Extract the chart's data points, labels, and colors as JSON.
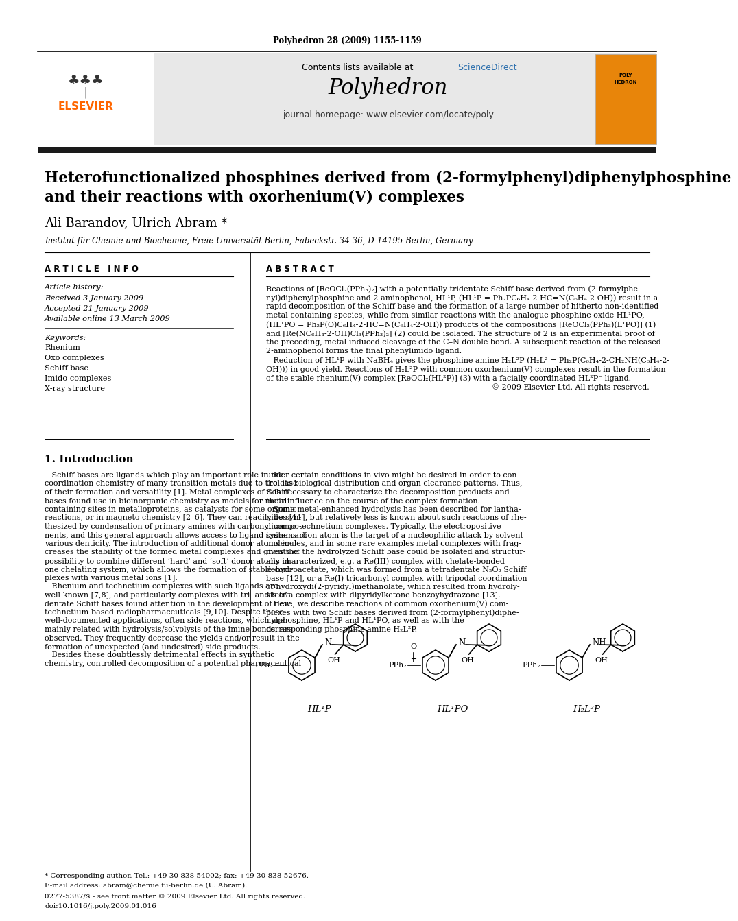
{
  "journal_header": "Polyhedron 28 (2009) 1155-1159",
  "journal_name": "Polyhedron",
  "contents_line": "Contents lists available at ScienceDirect",
  "journal_homepage": "journal homepage: www.elsevier.com/locate/poly",
  "title_line1": "Heterofunctionalized phosphines derived from (2-formylphenyl)diphenylphosphine",
  "title_line2": "and their reactions with oxorhenium(V) complexes",
  "authors": "Ali Barandov, Ulrich Abram *",
  "affiliation": "Institut für Chemie und Biochemie, Freie Universität Berlin, Fabeckstr. 34-36, D-14195 Berlin, Germany",
  "article_info_header": "A R T I C L E   I N F O",
  "abstract_header": "A B S T R A C T",
  "article_history_label": "Article history:",
  "received": "Received 3 January 2009",
  "accepted": "Accepted 21 January 2009",
  "available_online": "Available online 13 March 2009",
  "keywords_label": "Keywords:",
  "keywords": [
    "Rhenium",
    "Oxo complexes",
    "Schiff base",
    "Imido complexes",
    "X-ray structure"
  ],
  "footnote_corresponding": "* Corresponding author. Tel.: +49 30 838 54002; fax: +49 30 838 52676.",
  "footnote_email": "E-mail address: abram@chemie.fu-berlin.de (U. Abram).",
  "footnote_copyright": "0277-5387/$ - see front matter © 2009 Elsevier Ltd. All rights reserved.",
  "footnote_doi": "doi:10.1016/j.poly.2009.01.016",
  "background_color": "#ffffff",
  "elsevier_color": "#ff6600",
  "sciencedirect_color": "#2c6fad",
  "thick_bar_color": "#1a1a1a",
  "label1": "HL¹P",
  "label2": "HL¹PO",
  "label3": "H₂L²P"
}
